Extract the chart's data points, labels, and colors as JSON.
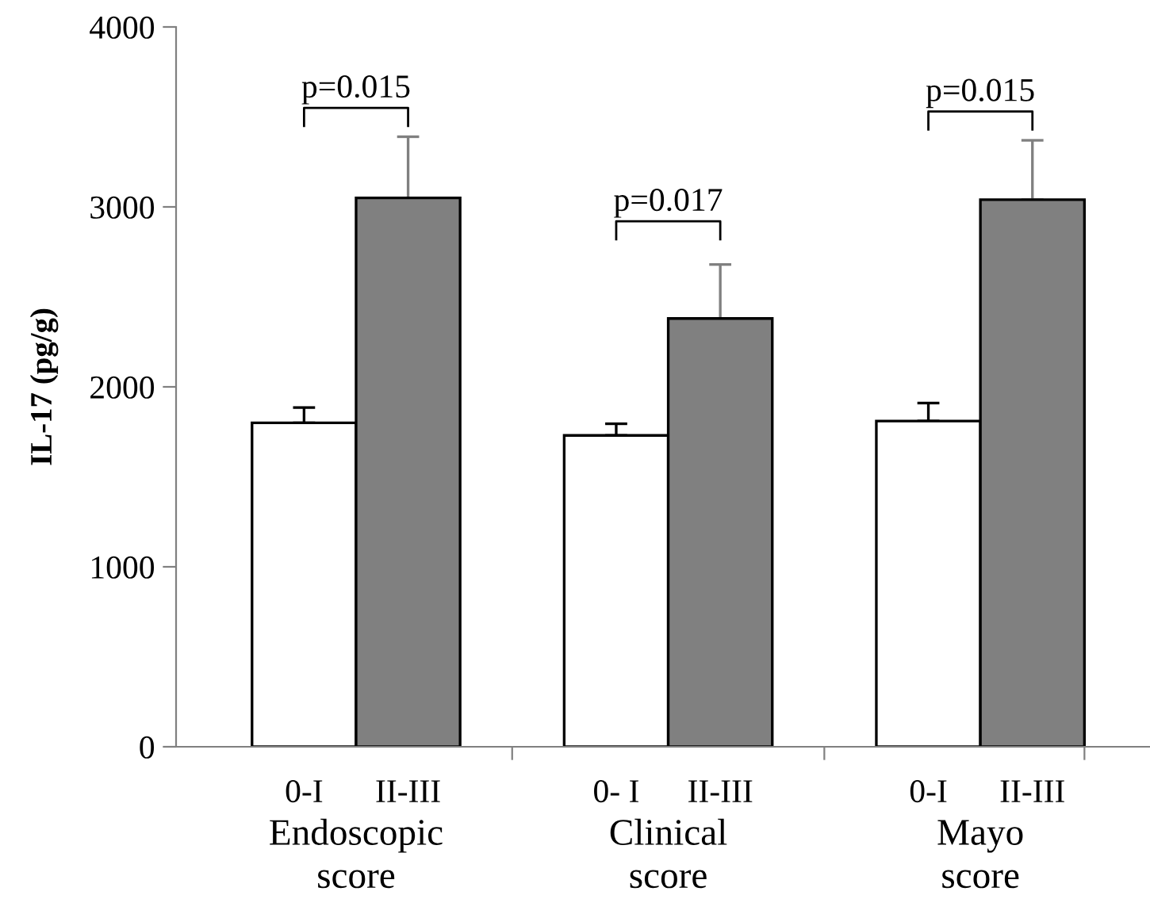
{
  "chart_data": {
    "type": "bar",
    "ylabel": "IL-17 (pg/g)",
    "categories": [
      "0-I",
      "II-III",
      null,
      "0- I",
      "II-III",
      null,
      "0-I",
      "II-III"
    ],
    "values": [
      1800,
      3050,
      null,
      1730,
      2380,
      null,
      1810,
      3040
    ],
    "colors": [
      "#ffffff",
      "#808080",
      "#ffffff",
      "#ffffff",
      "#808080",
      "#ffffff",
      "#ffffff",
      "#808080"
    ],
    "errors": [
      [
        1800,
        1885
      ],
      [
        3050,
        3390
      ],
      null,
      [
        1730,
        1795
      ],
      [
        2380,
        2680
      ],
      null,
      [
        1810,
        1910
      ],
      [
        3040,
        3370
      ]
    ],
    "ylim": [
      0,
      4000
    ],
    "yticks": [
      0,
      1000,
      2000,
      3000,
      4000
    ],
    "annotations": [
      "p=0.015",
      "p=0.017",
      "p=0.015",
      "Endoscopic\nscore",
      "Clinical\nscore",
      "Mayo\nscore"
    ]
  }
}
